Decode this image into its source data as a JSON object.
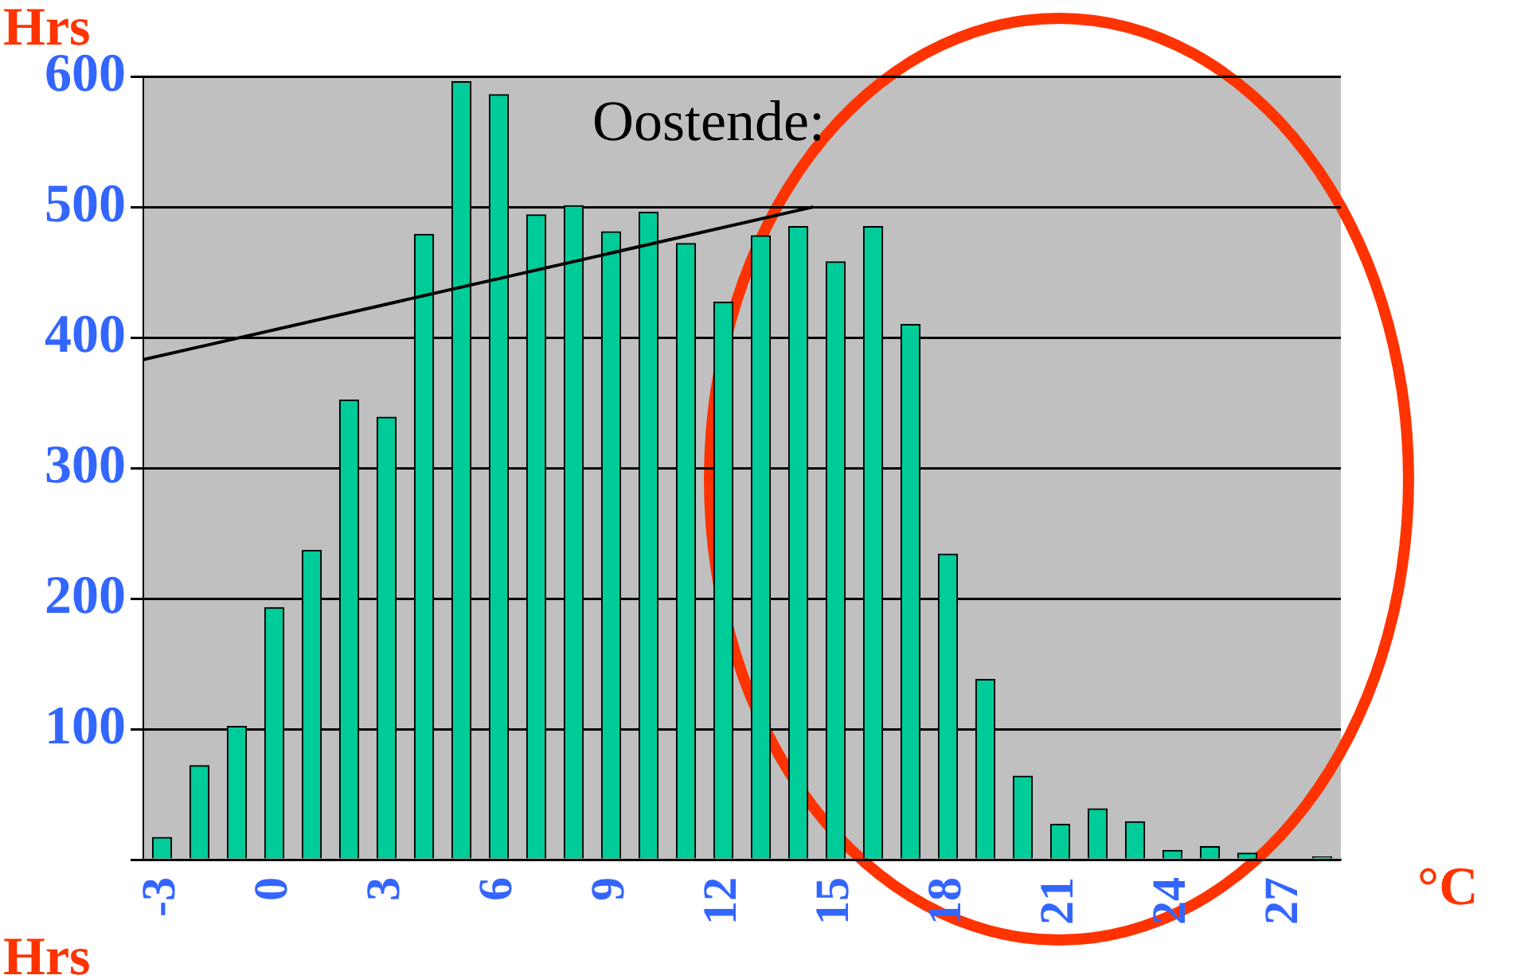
{
  "chart_data": {
    "type": "bar",
    "title": "Oostende:",
    "ylabel": "Hrs",
    "xlabel": "°C",
    "annotations": [
      "Hrs"
    ],
    "x": [
      -3,
      -2,
      -1,
      0,
      1,
      2,
      3,
      4,
      5,
      6,
      7,
      8,
      9,
      10,
      11,
      12,
      13,
      14,
      15,
      16,
      17,
      18,
      19,
      20,
      21,
      22,
      23,
      24,
      25,
      26,
      27,
      28
    ],
    "series": [
      {
        "color": "#00cc99",
        "values": [
          17,
          72,
          102,
          193,
          237,
          352,
          339,
          479,
          596,
          586,
          494,
          501,
          481,
          496,
          472,
          427,
          478,
          485,
          458,
          485,
          410,
          234,
          138,
          64,
          27,
          39,
          29,
          7,
          10,
          5,
          0,
          2
        ]
      },
      {
        "type": "line",
        "x": [
          -3.5,
          14.4
        ],
        "values": [
          383,
          500
        ],
        "color": "#000000"
      }
    ],
    "xlim": [
      -3.5,
      28.5
    ],
    "xticks": [
      -3,
      0,
      3,
      6,
      9,
      12,
      15,
      18,
      21,
      24,
      27
    ],
    "ylim": [
      0,
      600
    ],
    "yticks": [
      {
        "value": 0,
        "label": null
      },
      100,
      200,
      300,
      400,
      500,
      600
    ],
    "grid": "y",
    "legend": false,
    "marker": "none"
  }
}
